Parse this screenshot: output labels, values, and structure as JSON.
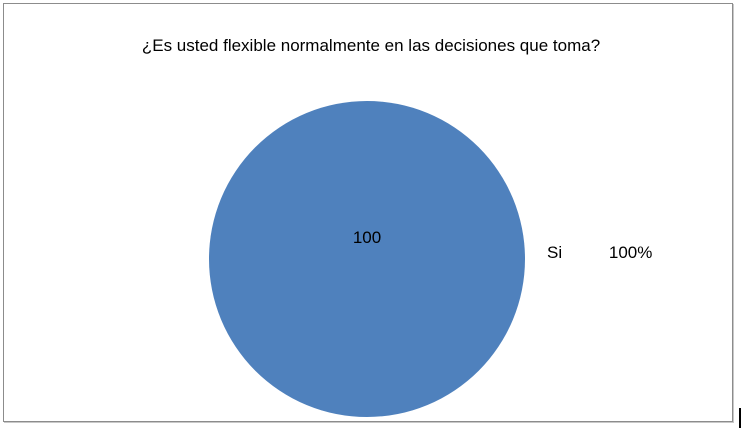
{
  "chart_data": {
    "type": "pie",
    "title": "¿Es usted flexible  normalmente  en las decisiones que toma?",
    "categories": [
      "Si"
    ],
    "values": [
      100
    ],
    "data_labels": [
      "100"
    ],
    "legend": [
      {
        "label": "Si",
        "percent": "100%"
      }
    ],
    "legend_placement": "right",
    "colors": [
      "#4f81bd"
    ]
  }
}
